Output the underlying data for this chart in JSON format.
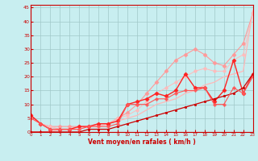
{
  "xlabel": "Vent moyen/en rafales ( km/h )",
  "xlim": [
    0,
    23
  ],
  "ylim": [
    0,
    46
  ],
  "yticks": [
    0,
    5,
    10,
    15,
    20,
    25,
    30,
    35,
    40,
    45
  ],
  "xticks": [
    0,
    1,
    2,
    3,
    4,
    5,
    6,
    7,
    8,
    9,
    10,
    11,
    12,
    13,
    14,
    15,
    16,
    17,
    18,
    19,
    20,
    21,
    22,
    23
  ],
  "bg_color": "#c8eef0",
  "grid_color": "#a0c8c8",
  "lines": [
    {
      "x": [
        0,
        1,
        2,
        3,
        4,
        5,
        6,
        7,
        8,
        9,
        10,
        11,
        12,
        13,
        14,
        15,
        16,
        17,
        18,
        19,
        20,
        21,
        22,
        23
      ],
      "y": [
        0,
        0,
        0,
        1,
        1,
        1,
        2,
        2,
        3,
        4,
        5,
        6,
        8,
        10,
        11,
        12,
        14,
        15,
        17,
        18,
        20,
        21,
        22,
        44
      ],
      "color": "#ffb8b8",
      "marker": null,
      "lw": 0.9,
      "ms": 0
    },
    {
      "x": [
        0,
        1,
        2,
        3,
        4,
        5,
        6,
        7,
        8,
        9,
        10,
        11,
        12,
        13,
        14,
        15,
        16,
        17,
        18,
        19,
        20,
        21,
        22,
        23
      ],
      "y": [
        6,
        3,
        2,
        2,
        2,
        2,
        2,
        3,
        3,
        5,
        7,
        10,
        14,
        18,
        22,
        26,
        28,
        30,
        28,
        25,
        24,
        28,
        32,
        43
      ],
      "color": "#ff9999",
      "marker": "D",
      "lw": 0.8,
      "ms": 2.5
    },
    {
      "x": [
        0,
        1,
        2,
        3,
        4,
        5,
        6,
        7,
        8,
        9,
        10,
        11,
        12,
        13,
        14,
        15,
        16,
        17,
        18,
        19,
        20,
        21,
        22,
        23
      ],
      "y": [
        5,
        3,
        2,
        1,
        1,
        2,
        2,
        2,
        3,
        5,
        6,
        8,
        11,
        14,
        16,
        18,
        20,
        22,
        23,
        22,
        22,
        26,
        28,
        43
      ],
      "color": "#ffbbbb",
      "marker": "o",
      "lw": 0.7,
      "ms": 2.5
    },
    {
      "x": [
        0,
        1,
        2,
        3,
        4,
        5,
        6,
        7,
        8,
        9,
        10,
        11,
        12,
        13,
        14,
        15,
        16,
        17,
        18,
        19,
        20,
        21,
        22,
        23
      ],
      "y": [
        6,
        3,
        1,
        1,
        1,
        2,
        2,
        3,
        3,
        4,
        10,
        11,
        12,
        14,
        13,
        15,
        21,
        16,
        16,
        11,
        15,
        26,
        14,
        21
      ],
      "color": "#ff2222",
      "marker": "D",
      "lw": 1.0,
      "ms": 2.5
    },
    {
      "x": [
        0,
        1,
        2,
        3,
        4,
        5,
        6,
        7,
        8,
        9,
        10,
        11,
        12,
        13,
        14,
        15,
        16,
        17,
        18,
        19,
        20,
        21,
        22,
        23
      ],
      "y": [
        0,
        0,
        0,
        0,
        0,
        0,
        1,
        1,
        1,
        2,
        3,
        4,
        5,
        6,
        7,
        8,
        9,
        10,
        11,
        12,
        13,
        14,
        16,
        21
      ],
      "color": "#cc0000",
      "marker": "s",
      "lw": 0.9,
      "ms": 2
    },
    {
      "x": [
        0,
        1,
        2,
        3,
        4,
        5,
        6,
        7,
        8,
        9,
        10,
        11,
        12,
        13,
        14,
        15,
        16,
        17,
        18,
        19,
        20,
        21,
        22,
        23
      ],
      "y": [
        5,
        3,
        1,
        1,
        1,
        1,
        2,
        2,
        2,
        3,
        10,
        10,
        10,
        12,
        12,
        14,
        15,
        15,
        16,
        10,
        10,
        16,
        14,
        20
      ],
      "color": "#ff5555",
      "marker": "P",
      "lw": 0.8,
      "ms": 2.5
    }
  ]
}
